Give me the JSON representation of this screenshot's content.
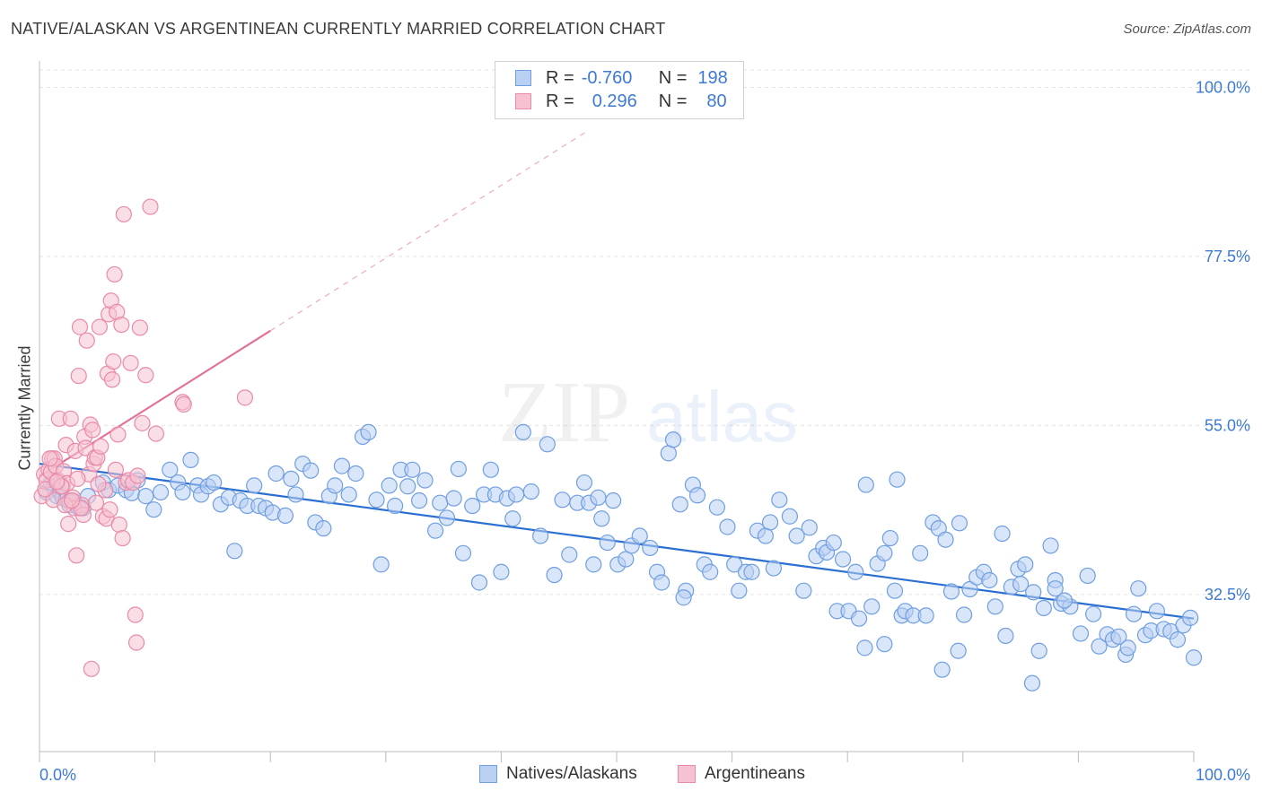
{
  "title": "NATIVE/ALASKAN VS ARGENTINEAN CURRENTLY MARRIED CORRELATION CHART",
  "source": "Source: ZipAtlas.com",
  "watermark": {
    "zip": "ZIP",
    "atlas": "atlas"
  },
  "colors": {
    "blue": "#6f9fe0",
    "blue_fill": "#b9d0f3",
    "blue_line": "#2a6fd1",
    "pink": "#e98aa8",
    "pink_fill": "#f6c2d2",
    "pink_line": "#e2709a",
    "accent_text": "#3d7ad6"
  },
  "legend": {
    "rows": [
      {
        "r_label": "R =",
        "r_value": "-0.760",
        "n_label": "N =",
        "n_value": "198"
      },
      {
        "r_label": "R =",
        "r_value": "0.296",
        "n_label": "N =",
        "n_value": "80"
      }
    ]
  },
  "chart_data": {
    "type": "scatter",
    "title": "NATIVE/ALASKAN VS ARGENTINEAN CURRENTLY MARRIED CORRELATION CHART",
    "xlabel": "",
    "ylabel": "Currently Married",
    "xlim": [
      0,
      100
    ],
    "ylim": [
      11.6,
      103.5
    ],
    "x_tick_labels": [
      "0.0%",
      "100.0%"
    ],
    "y_tick_labels": [
      {
        "value": 100.0,
        "label": "100.0%"
      },
      {
        "value": 77.5,
        "label": "77.5%"
      },
      {
        "value": 55.0,
        "label": "55.0%"
      },
      {
        "value": 32.5,
        "label": "32.5%"
      }
    ],
    "grid": true,
    "legend_position": "bottom-center",
    "series": [
      {
        "name": "Natives/Alaskans",
        "color": "#6f9fe0",
        "trend": {
          "x": [
            0,
            100
          ],
          "y": [
            49.9,
            29.3
          ],
          "style": "solid"
        },
        "points": [
          [
            0.6,
            46.1
          ],
          [
            1.0,
            47.4
          ],
          [
            1.2,
            47.7
          ],
          [
            1.5,
            45.6
          ],
          [
            1.8,
            46.1
          ],
          [
            2.0,
            45.4
          ],
          [
            2.3,
            45.1
          ],
          [
            2.6,
            44.4
          ],
          [
            3.0,
            44.9
          ],
          [
            3.4,
            44.0
          ],
          [
            3.8,
            44.0
          ],
          [
            4.2,
            45.6
          ],
          [
            5.5,
            47.4
          ],
          [
            6.0,
            46.4
          ],
          [
            6.8,
            47.0
          ],
          [
            7.5,
            46.4
          ],
          [
            8.0,
            46.0
          ],
          [
            8.5,
            47.7
          ],
          [
            9.2,
            45.6
          ],
          [
            9.9,
            43.8
          ],
          [
            10.5,
            46.1
          ],
          [
            11.3,
            49.1
          ],
          [
            12.0,
            47.4
          ],
          [
            12.4,
            46.1
          ],
          [
            13.1,
            50.4
          ],
          [
            13.7,
            47.0
          ],
          [
            14.0,
            45.8
          ],
          [
            14.6,
            46.9
          ],
          [
            15.1,
            47.4
          ],
          [
            15.7,
            44.5
          ],
          [
            16.4,
            45.4
          ],
          [
            16.9,
            38.3
          ],
          [
            17.4,
            45.0
          ],
          [
            18.0,
            44.3
          ],
          [
            18.6,
            47.0
          ],
          [
            19.0,
            44.3
          ],
          [
            19.6,
            44.0
          ],
          [
            20.2,
            43.4
          ],
          [
            20.5,
            48.6
          ],
          [
            21.3,
            43.0
          ],
          [
            21.8,
            47.9
          ],
          [
            22.2,
            45.8
          ],
          [
            22.8,
            49.9
          ],
          [
            23.5,
            49.0
          ],
          [
            23.9,
            42.1
          ],
          [
            24.6,
            41.3
          ],
          [
            25.1,
            45.6
          ],
          [
            25.6,
            47.0
          ],
          [
            26.2,
            49.6
          ],
          [
            26.8,
            45.8
          ],
          [
            27.4,
            48.6
          ],
          [
            28.0,
            53.5
          ],
          [
            28.5,
            54.1
          ],
          [
            29.2,
            45.1
          ],
          [
            29.6,
            36.5
          ],
          [
            30.3,
            47.0
          ],
          [
            30.8,
            44.3
          ],
          [
            31.3,
            49.1
          ],
          [
            31.9,
            46.9
          ],
          [
            32.3,
            49.1
          ],
          [
            32.9,
            45.0
          ],
          [
            33.4,
            47.7
          ],
          [
            34.3,
            41.0
          ],
          [
            34.7,
            44.7
          ],
          [
            35.3,
            42.7
          ],
          [
            35.9,
            45.3
          ],
          [
            36.3,
            49.2
          ],
          [
            36.7,
            38.0
          ],
          [
            37.5,
            44.3
          ],
          [
            38.1,
            34.1
          ],
          [
            38.5,
            45.8
          ],
          [
            39.1,
            49.1
          ],
          [
            39.5,
            45.8
          ],
          [
            40.0,
            35.5
          ],
          [
            40.5,
            45.3
          ],
          [
            41.0,
            42.6
          ],
          [
            41.3,
            45.8
          ],
          [
            41.9,
            54.1
          ],
          [
            42.6,
            46.2
          ],
          [
            43.4,
            40.3
          ],
          [
            44.0,
            52.5
          ],
          [
            44.6,
            35.1
          ],
          [
            45.3,
            45.1
          ],
          [
            45.9,
            37.8
          ],
          [
            46.6,
            44.7
          ],
          [
            47.2,
            47.4
          ],
          [
            47.6,
            44.7
          ],
          [
            48.4,
            45.4
          ],
          [
            48.7,
            42.6
          ],
          [
            48.0,
            36.5
          ],
          [
            49.2,
            39.4
          ],
          [
            49.7,
            45.0
          ],
          [
            50.1,
            36.5
          ],
          [
            50.8,
            37.2
          ],
          [
            51.3,
            39.0
          ],
          [
            52.0,
            40.3
          ],
          [
            52.9,
            38.7
          ],
          [
            53.5,
            35.5
          ],
          [
            53.9,
            34.1
          ],
          [
            54.5,
            51.3
          ],
          [
            54.9,
            53.1
          ],
          [
            55.5,
            44.5
          ],
          [
            56.0,
            33.0
          ],
          [
            55.8,
            32.1
          ],
          [
            56.6,
            47.1
          ],
          [
            57.0,
            45.7
          ],
          [
            57.6,
            36.5
          ],
          [
            58.1,
            35.5
          ],
          [
            58.7,
            44.1
          ],
          [
            59.6,
            41.5
          ],
          [
            60.2,
            36.5
          ],
          [
            60.6,
            33.0
          ],
          [
            61.2,
            35.5
          ],
          [
            61.7,
            35.5
          ],
          [
            62.2,
            41.0
          ],
          [
            62.9,
            40.3
          ],
          [
            63.3,
            42.1
          ],
          [
            63.6,
            36.0
          ],
          [
            64.1,
            45.1
          ],
          [
            65.0,
            42.9
          ],
          [
            65.6,
            40.3
          ],
          [
            66.2,
            33.0
          ],
          [
            66.7,
            41.4
          ],
          [
            67.3,
            37.6
          ],
          [
            67.9,
            38.7
          ],
          [
            68.2,
            38.1
          ],
          [
            68.8,
            39.4
          ],
          [
            69.1,
            30.3
          ],
          [
            69.6,
            37.2
          ],
          [
            70.1,
            30.3
          ],
          [
            70.7,
            35.5
          ],
          [
            71.0,
            29.3
          ],
          [
            71.6,
            47.1
          ],
          [
            72.1,
            30.9
          ],
          [
            72.6,
            36.6
          ],
          [
            73.2,
            38.0
          ],
          [
            73.7,
            40.0
          ],
          [
            74.3,
            47.8
          ],
          [
            74.7,
            29.7
          ],
          [
            75.0,
            30.3
          ],
          [
            75.7,
            29.7
          ],
          [
            76.3,
            38.0
          ],
          [
            76.8,
            29.7
          ],
          [
            77.4,
            42.1
          ],
          [
            77.9,
            41.3
          ],
          [
            78.5,
            39.8
          ],
          [
            78.2,
            22.5
          ],
          [
            79.0,
            32.9
          ],
          [
            79.6,
            25.0
          ],
          [
            80.1,
            29.8
          ],
          [
            80.6,
            33.2
          ],
          [
            81.2,
            34.8
          ],
          [
            81.8,
            35.5
          ],
          [
            82.3,
            34.4
          ],
          [
            82.8,
            30.9
          ],
          [
            83.4,
            40.6
          ],
          [
            83.7,
            27.0
          ],
          [
            84.2,
            33.5
          ],
          [
            84.8,
            35.9
          ],
          [
            85.4,
            36.5
          ],
          [
            86.1,
            32.8
          ],
          [
            86.6,
            25.0
          ],
          [
            87.0,
            30.7
          ],
          [
            87.6,
            39.0
          ],
          [
            88.0,
            34.4
          ],
          [
            88.5,
            31.3
          ],
          [
            89.3,
            30.9
          ],
          [
            90.2,
            27.3
          ],
          [
            90.8,
            35.0
          ],
          [
            91.3,
            29.9
          ],
          [
            91.8,
            25.6
          ],
          [
            92.5,
            27.2
          ],
          [
            93.0,
            26.5
          ],
          [
            93.5,
            26.9
          ],
          [
            94.1,
            24.5
          ],
          [
            94.8,
            29.9
          ],
          [
            95.2,
            33.3
          ],
          [
            95.8,
            27.1
          ],
          [
            96.3,
            27.7
          ],
          [
            96.8,
            30.3
          ],
          [
            97.4,
            27.9
          ],
          [
            98.0,
            27.6
          ],
          [
            98.6,
            26.5
          ],
          [
            99.1,
            28.4
          ],
          [
            99.7,
            29.4
          ],
          [
            100.0,
            24.1
          ],
          [
            85.0,
            33.9
          ],
          [
            86.0,
            20.7
          ],
          [
            71.5,
            25.4
          ],
          [
            73.2,
            25.9
          ],
          [
            79.7,
            42.0
          ],
          [
            74.1,
            33.0
          ],
          [
            88.8,
            31.7
          ],
          [
            94.3,
            25.4
          ],
          [
            88.0,
            33.3
          ]
        ]
      },
      {
        "name": "Argentineans",
        "color": "#e98aa8",
        "trend": {
          "x": [
            0,
            20.0
          ],
          "y": [
            48.2,
            67.6
          ],
          "style": "solid",
          "extended": {
            "x": [
              20.0,
              47.6
            ],
            "y": [
              67.6,
              94.3
            ],
            "style": "dashed"
          }
        },
        "points": [
          [
            0.2,
            45.6
          ],
          [
            0.4,
            48.5
          ],
          [
            0.6,
            47.7
          ],
          [
            0.8,
            49.1
          ],
          [
            1.0,
            48.8
          ],
          [
            1.1,
            50.6
          ],
          [
            1.3,
            50.6
          ],
          [
            1.4,
            49.6
          ],
          [
            1.6,
            47.7
          ],
          [
            1.7,
            55.9
          ],
          [
            2.0,
            46.9
          ],
          [
            2.1,
            48.9
          ],
          [
            2.3,
            52.4
          ],
          [
            2.5,
            41.9
          ],
          [
            2.6,
            44.9
          ],
          [
            2.7,
            55.9
          ],
          [
            2.9,
            45.4
          ],
          [
            3.0,
            44.0
          ],
          [
            3.1,
            51.6
          ],
          [
            3.2,
            37.7
          ],
          [
            3.4,
            61.6
          ],
          [
            3.5,
            68.1
          ],
          [
            3.7,
            44.4
          ],
          [
            3.8,
            43.1
          ],
          [
            3.9,
            53.5
          ],
          [
            4.0,
            52.0
          ],
          [
            4.1,
            66.3
          ],
          [
            4.3,
            48.5
          ],
          [
            4.4,
            55.1
          ],
          [
            4.6,
            54.4
          ],
          [
            4.7,
            49.9
          ],
          [
            4.8,
            50.7
          ],
          [
            4.9,
            44.7
          ],
          [
            5.0,
            50.7
          ],
          [
            5.2,
            68.1
          ],
          [
            5.3,
            52.2
          ],
          [
            5.5,
            42.9
          ],
          [
            5.7,
            46.4
          ],
          [
            5.8,
            42.6
          ],
          [
            5.9,
            61.9
          ],
          [
            6.0,
            69.8
          ],
          [
            6.2,
            71.6
          ],
          [
            6.3,
            61.1
          ],
          [
            6.4,
            63.5
          ],
          [
            6.5,
            75.1
          ],
          [
            6.6,
            49.1
          ],
          [
            6.7,
            70.1
          ],
          [
            6.8,
            53.8
          ],
          [
            6.9,
            41.8
          ],
          [
            7.1,
            68.4
          ],
          [
            7.2,
            40.0
          ],
          [
            7.3,
            83.1
          ],
          [
            7.5,
            47.4
          ],
          [
            7.7,
            47.7
          ],
          [
            7.9,
            63.3
          ],
          [
            8.1,
            47.4
          ],
          [
            8.3,
            29.8
          ],
          [
            8.4,
            26.1
          ],
          [
            8.5,
            48.3
          ],
          [
            8.9,
            55.3
          ],
          [
            8.7,
            68.0
          ],
          [
            9.2,
            61.7
          ],
          [
            9.6,
            84.1
          ],
          [
            10.1,
            53.9
          ],
          [
            12.4,
            58.1
          ],
          [
            12.5,
            57.8
          ],
          [
            17.8,
            58.7
          ],
          [
            4.5,
            22.6
          ],
          [
            2.4,
            47.3
          ],
          [
            1.9,
            46.9
          ],
          [
            1.2,
            45.1
          ],
          [
            0.9,
            50.6
          ],
          [
            0.5,
            46.5
          ],
          [
            2.2,
            44.4
          ],
          [
            3.6,
            44.0
          ],
          [
            5.1,
            47.2
          ],
          [
            6.1,
            43.8
          ],
          [
            3.3,
            47.9
          ],
          [
            2.8,
            45.0
          ],
          [
            1.5,
            47.5
          ]
        ]
      }
    ]
  }
}
